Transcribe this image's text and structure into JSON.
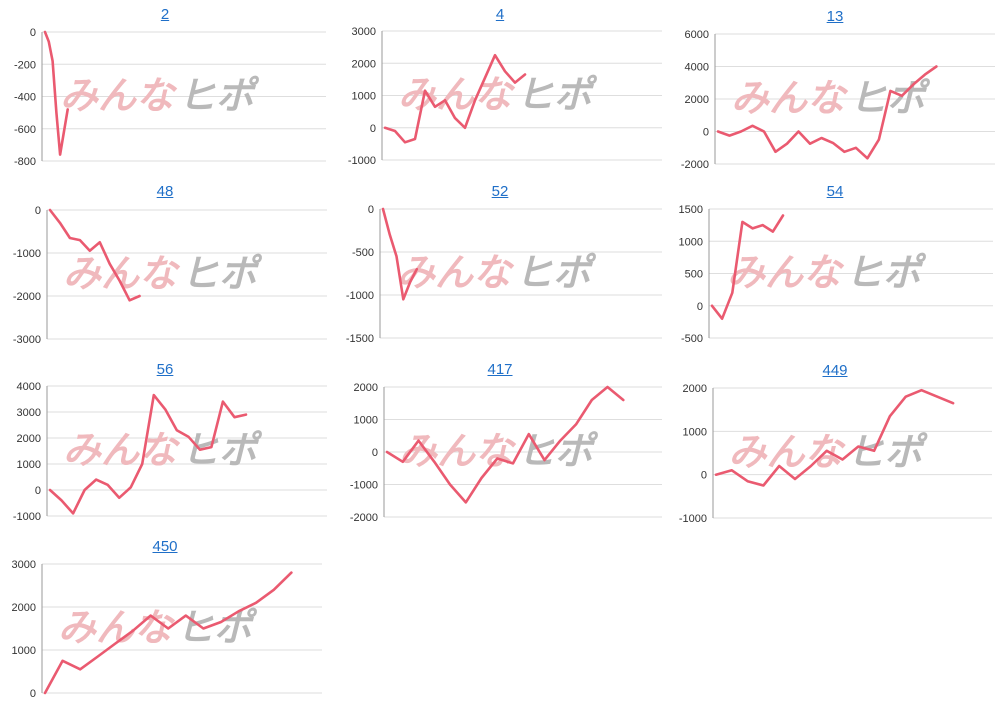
{
  "watermark": {
    "part1": "みんな",
    "part2": "ヒポ"
  },
  "colors": {
    "line": "#ea5a70",
    "grid": "#dedede",
    "axis": "#9a9a9a",
    "title_link": "#1f6fc8"
  },
  "chart_data": [
    {
      "type": "line",
      "title": "2",
      "yticks": [
        0,
        -200,
        -400,
        -600,
        -800
      ],
      "ylim": [
        -800,
        0
      ],
      "series": [
        {
          "values": [
            0,
            -60,
            -180,
            -500,
            -760,
            -620,
            -480
          ]
        }
      ]
    },
    {
      "type": "line",
      "title": "4",
      "yticks": [
        3000,
        2000,
        1000,
        0,
        -1000
      ],
      "ylim": [
        -1000,
        3000
      ],
      "series": [
        {
          "values": [
            0,
            -100,
            -450,
            -350,
            1150,
            650,
            850,
            300,
            0,
            850,
            1550,
            2250,
            1750,
            1400,
            1650
          ]
        }
      ]
    },
    {
      "type": "line",
      "title": "13",
      "yticks": [
        6000,
        4000,
        2000,
        0,
        -2000
      ],
      "ylim": [
        -2000,
        6000
      ],
      "series": [
        {
          "values": [
            0,
            -250,
            0,
            350,
            0,
            -1250,
            -750,
            0,
            -750,
            -400,
            -700,
            -1250,
            -1000,
            -1650,
            -500,
            2500,
            2200,
            2900,
            3500,
            4000
          ]
        }
      ]
    },
    {
      "type": "line",
      "title": "48",
      "yticks": [
        0,
        -1000,
        -2000,
        -3000
      ],
      "ylim": [
        -3000,
        0
      ],
      "series": [
        {
          "values": [
            0,
            -300,
            -650,
            -700,
            -950,
            -750,
            -1250,
            -1650,
            -2100,
            -2000
          ]
        }
      ]
    },
    {
      "type": "line",
      "title": "52",
      "yticks": [
        0,
        -500,
        -1000,
        -1500
      ],
      "ylim": [
        -1500,
        0
      ],
      "series": [
        {
          "values": [
            0,
            -300,
            -550,
            -1050,
            -850,
            -700
          ]
        }
      ]
    },
    {
      "type": "line",
      "title": "54",
      "yticks": [
        1500,
        1000,
        500,
        0,
        -500
      ],
      "ylim": [
        -500,
        1500
      ],
      "series": [
        {
          "values": [
            0,
            -200,
            200,
            1300,
            1200,
            1250,
            1150,
            1400
          ]
        }
      ]
    },
    {
      "type": "line",
      "title": "56",
      "yticks": [
        4000,
        3000,
        2000,
        1000,
        0,
        -1000
      ],
      "ylim": [
        -1000,
        4000
      ],
      "series": [
        {
          "values": [
            0,
            -400,
            -900,
            0,
            400,
            200,
            -300,
            100,
            1000,
            3650,
            3100,
            2300,
            2050,
            1550,
            1650,
            3400,
            2800,
            2900
          ]
        }
      ]
    },
    {
      "type": "line",
      "title": "417",
      "yticks": [
        2000,
        1000,
        0,
        -1000,
        -2000
      ],
      "ylim": [
        -2000,
        2000
      ],
      "series": [
        {
          "values": [
            0,
            -300,
            350,
            -300,
            -1000,
            -1550,
            -800,
            -200,
            -350,
            550,
            -250,
            350,
            850,
            1600,
            2000,
            1600
          ]
        }
      ]
    },
    {
      "type": "line",
      "title": "449",
      "yticks": [
        2000,
        1000,
        0,
        -1000
      ],
      "ylim": [
        -1000,
        2000
      ],
      "series": [
        {
          "values": [
            0,
            100,
            -150,
            -250,
            200,
            -100,
            200,
            550,
            350,
            650,
            550,
            1350,
            1800,
            1950,
            1800,
            1650
          ]
        }
      ]
    },
    {
      "type": "line",
      "title": "450",
      "yticks": [
        3000,
        2000,
        1000,
        0
      ],
      "ylim": [
        0,
        3000
      ],
      "series": [
        {
          "values": [
            0,
            750,
            550,
            850,
            1150,
            1450,
            1800,
            1500,
            1800,
            1500,
            1650,
            1900,
            2100,
            2400,
            2800
          ]
        }
      ]
    }
  ]
}
